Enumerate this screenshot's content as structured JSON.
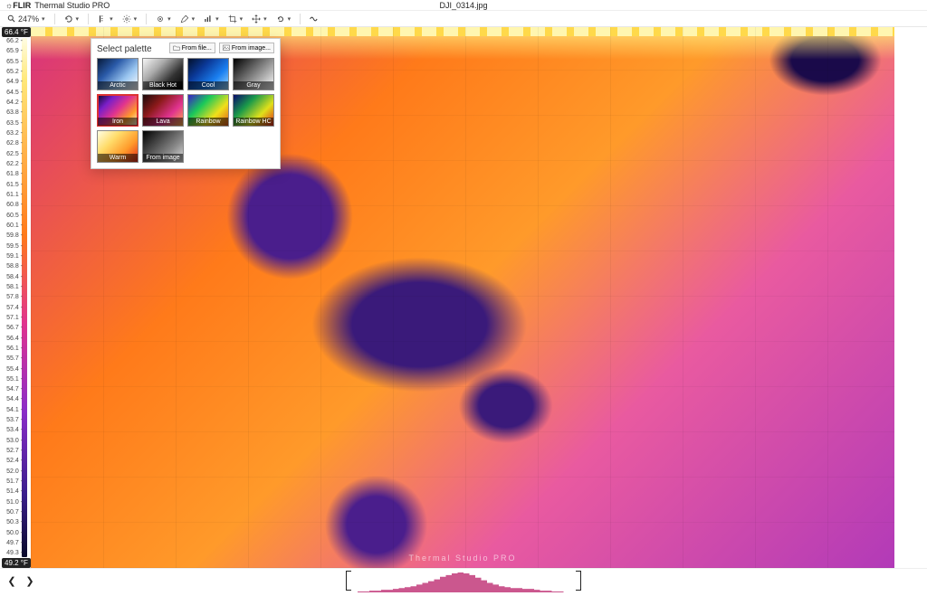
{
  "app": {
    "brand": "☼FLIR",
    "name": "Thermal Studio PRO",
    "filename": "DJI_0314.jpg"
  },
  "toolbar": {
    "zoom": "247%"
  },
  "scale": {
    "top_label": "66.4 °F",
    "bottom_label": "49.2 °F",
    "ticks": [
      "66.2",
      "65.9",
      "65.5",
      "65.2",
      "64.9",
      "64.5",
      "64.2",
      "63.8",
      "63.5",
      "63.2",
      "62.8",
      "62.5",
      "62.2",
      "61.8",
      "61.5",
      "61.1",
      "60.8",
      "60.5",
      "60.1",
      "59.8",
      "59.5",
      "59.1",
      "58.8",
      "58.4",
      "58.1",
      "57.8",
      "57.4",
      "57.1",
      "56.7",
      "56.4",
      "56.1",
      "55.7",
      "55.4",
      "55.1",
      "54.7",
      "54.4",
      "54.1",
      "53.7",
      "53.4",
      "53.0",
      "52.7",
      "52.4",
      "52.0",
      "51.7",
      "51.4",
      "51.0",
      "50.7",
      "50.3",
      "50.0",
      "49.7",
      "49.3"
    ],
    "gradient_colors": [
      "#fffde4",
      "#ffe87a",
      "#ffb24a",
      "#ff7a1a",
      "#e0338f",
      "#8a2cc8",
      "#3a1e8c",
      "#0a0a2a"
    ]
  },
  "palette": {
    "title": "Select palette",
    "from_file_label": "From file...",
    "from_image_label": "From image...",
    "options": [
      {
        "key": "arctic",
        "label": "Arctic"
      },
      {
        "key": "blackhot",
        "label": "Black Hot"
      },
      {
        "key": "cool",
        "label": "Cool"
      },
      {
        "key": "gray",
        "label": "Gray"
      },
      {
        "key": "iron",
        "label": "Iron",
        "selected": true
      },
      {
        "key": "lava",
        "label": "Lava"
      },
      {
        "key": "rainbow",
        "label": "Rainbow"
      },
      {
        "key": "rainbowhc",
        "label": "Rainbow HC"
      },
      {
        "key": "warm",
        "label": "Warm"
      },
      {
        "key": "fromimage",
        "label": "From image"
      }
    ]
  },
  "watermark": "Thermal Studio PRO",
  "histogram": {
    "color": "#c23a7a",
    "values": [
      0,
      0,
      1,
      1,
      2,
      2,
      3,
      3,
      4,
      5,
      6,
      7,
      9,
      11,
      13,
      15,
      18,
      20,
      22,
      23,
      22,
      20,
      17,
      14,
      11,
      9,
      7,
      6,
      5,
      5,
      4,
      4,
      3,
      2,
      2,
      1,
      1,
      0,
      0,
      0
    ]
  }
}
